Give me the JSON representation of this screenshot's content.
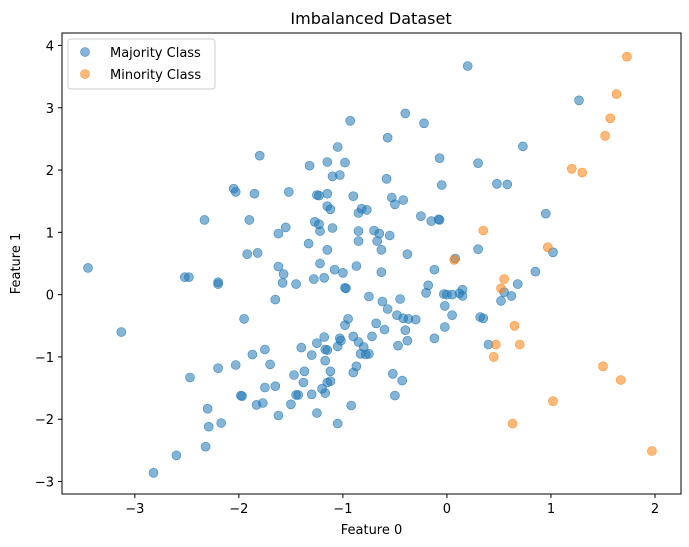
{
  "chart_data": {
    "type": "scatter",
    "title": "Imbalanced Dataset",
    "xlabel": "Feature 0",
    "ylabel": "Feature 1",
    "xlim": [
      -3.7,
      2.25
    ],
    "ylim": [
      -3.2,
      4.2
    ],
    "xticks": [
      -3,
      -2,
      -1,
      0,
      1,
      2
    ],
    "yticks": [
      -3,
      -2,
      -1,
      0,
      1,
      2,
      3,
      4
    ],
    "grid": false,
    "legend_position": "top-left",
    "series": [
      {
        "name": "Majority Class",
        "color": "#1f77b4",
        "points": [
          [
            -3.45,
            0.43
          ],
          [
            -3.13,
            -0.6
          ],
          [
            -2.82,
            -2.86
          ],
          [
            -2.6,
            -2.58
          ],
          [
            -2.52,
            0.28
          ],
          [
            -2.48,
            0.28
          ],
          [
            -2.47,
            -1.33
          ],
          [
            -2.33,
            1.2
          ],
          [
            -2.32,
            -2.44
          ],
          [
            -2.3,
            -1.83
          ],
          [
            -2.29,
            -2.12
          ],
          [
            -2.2,
            0.17
          ],
          [
            -2.2,
            0.2
          ],
          [
            -2.2,
            -1.18
          ],
          [
            -2.17,
            -2.06
          ],
          [
            -2.05,
            1.7
          ],
          [
            -2.03,
            1.65
          ],
          [
            -2.03,
            -1.13
          ],
          [
            -1.98,
            -1.62
          ],
          [
            -1.97,
            -1.63
          ],
          [
            -1.95,
            -0.39
          ],
          [
            -1.92,
            0.65
          ],
          [
            -1.9,
            1.2
          ],
          [
            -1.87,
            -0.96
          ],
          [
            -1.85,
            1.62
          ],
          [
            -1.83,
            -1.77
          ],
          [
            -1.82,
            0.67
          ],
          [
            -1.8,
            2.23
          ],
          [
            -1.77,
            -1.74
          ],
          [
            -1.75,
            -0.88
          ],
          [
            -1.75,
            -1.49
          ],
          [
            -1.7,
            -1.12
          ],
          [
            -1.65,
            -0.08
          ],
          [
            -1.65,
            -1.47
          ],
          [
            -1.62,
            0.98
          ],
          [
            -1.62,
            0.45
          ],
          [
            -1.62,
            -1.94
          ],
          [
            -1.58,
            0.19
          ],
          [
            -1.57,
            0.33
          ],
          [
            -1.55,
            1.08
          ],
          [
            -1.52,
            1.65
          ],
          [
            -1.5,
            -1.76
          ],
          [
            -1.47,
            -1.29
          ],
          [
            -1.45,
            0.17
          ],
          [
            -1.45,
            -1.61
          ],
          [
            -1.43,
            -1.61
          ],
          [
            -1.4,
            -0.85
          ],
          [
            -1.38,
            -1.41
          ],
          [
            -1.37,
            -1.23
          ],
          [
            -1.33,
            0.82
          ],
          [
            -1.32,
            2.07
          ],
          [
            -1.3,
            -0.97
          ],
          [
            -1.3,
            -1.6
          ],
          [
            -1.28,
            0.25
          ],
          [
            -1.27,
            1.17
          ],
          [
            -1.25,
            1.6
          ],
          [
            -1.25,
            -0.78
          ],
          [
            -1.25,
            -1.9
          ],
          [
            -1.23,
            1.59
          ],
          [
            -1.23,
            1.13
          ],
          [
            -1.22,
            1.02
          ],
          [
            -1.22,
            0.5
          ],
          [
            -1.2,
            -1.51
          ],
          [
            -1.18,
            0.27
          ],
          [
            -1.18,
            -0.68
          ],
          [
            -1.17,
            -0.88
          ],
          [
            -1.17,
            -1.06
          ],
          [
            -1.17,
            -1.58
          ],
          [
            -1.15,
            2.13
          ],
          [
            -1.15,
            1.62
          ],
          [
            -1.15,
            1.42
          ],
          [
            -1.15,
            0.72
          ],
          [
            -1.15,
            -1.41
          ],
          [
            -1.15,
            -0.89
          ],
          [
            -1.12,
            -1.39
          ],
          [
            -1.12,
            -1.23
          ],
          [
            -1.12,
            1.37
          ],
          [
            -1.1,
            1.9
          ],
          [
            -1.1,
            1.07
          ],
          [
            -1.08,
            0.4
          ],
          [
            -1.05,
            -0.83
          ],
          [
            -1.05,
            -2.07
          ],
          [
            -1.05,
            2.37
          ],
          [
            -1.03,
            -0.7
          ],
          [
            -1.03,
            1.92
          ],
          [
            -1.02,
            -0.74
          ],
          [
            -1.0,
            0.35
          ],
          [
            -0.98,
            -0.49
          ],
          [
            -0.98,
            0.11
          ],
          [
            -0.98,
            2.12
          ],
          [
            -0.97,
            0.1
          ],
          [
            -0.95,
            -0.39
          ],
          [
            -0.93,
            2.79
          ],
          [
            -0.92,
            -1.78
          ],
          [
            -0.9,
            -0.67
          ],
          [
            -0.9,
            -1.25
          ],
          [
            -0.9,
            1.58
          ],
          [
            -0.87,
            -1.15
          ],
          [
            -0.87,
            0.46
          ],
          [
            -0.85,
            1.02
          ],
          [
            -0.85,
            0.86
          ],
          [
            -0.85,
            1.31
          ],
          [
            -0.85,
            -0.76
          ],
          [
            -0.83,
            -0.95
          ],
          [
            -0.82,
            1.38
          ],
          [
            -0.8,
            -0.84
          ],
          [
            -0.78,
            -0.96
          ],
          [
            -0.77,
            1.36
          ],
          [
            -0.75,
            -0.95
          ],
          [
            -0.75,
            -0.03
          ],
          [
            -0.72,
            -0.67
          ],
          [
            -0.7,
            1.03
          ],
          [
            -0.68,
            -0.46
          ],
          [
            -0.67,
            0.86
          ],
          [
            -0.65,
            0.98
          ],
          [
            -0.63,
            0.36
          ],
          [
            -0.63,
            0.72
          ],
          [
            -0.62,
            -0.11
          ],
          [
            -0.6,
            -0.56
          ],
          [
            -0.58,
            1.86
          ],
          [
            -0.57,
            2.52
          ],
          [
            -0.57,
            -0.23
          ],
          [
            -0.55,
            0.95
          ],
          [
            -0.53,
            1.56
          ],
          [
            -0.52,
            -1.27
          ],
          [
            -0.5,
            -1.62
          ],
          [
            -0.5,
            1.45
          ],
          [
            -0.48,
            -0.33
          ],
          [
            -0.47,
            -0.82
          ],
          [
            -0.45,
            -0.07
          ],
          [
            -0.43,
            -1.38
          ],
          [
            -0.42,
            1.52
          ],
          [
            -0.42,
            -0.38
          ],
          [
            -0.4,
            -0.57
          ],
          [
            -0.4,
            2.91
          ],
          [
            -0.38,
            -0.74
          ],
          [
            -0.38,
            0.65
          ],
          [
            -0.37,
            -0.39
          ],
          [
            -0.3,
            -0.4
          ],
          [
            -0.25,
            1.26
          ],
          [
            -0.22,
            2.75
          ],
          [
            -0.2,
            0.03
          ],
          [
            -0.18,
            0.15
          ],
          [
            -0.15,
            1.18
          ],
          [
            -0.12,
            -0.7
          ],
          [
            -0.12,
            0.4
          ],
          [
            -0.08,
            1.21
          ],
          [
            -0.07,
            1.2
          ],
          [
            -0.07,
            2.19
          ],
          [
            -0.05,
            1.76
          ],
          [
            -0.03,
            0.01
          ],
          [
            -0.02,
            -0.52
          ],
          [
            -0.02,
            -0.18
          ],
          [
            0.0,
            0.0
          ],
          [
            0.05,
            -0.33
          ],
          [
            0.05,
            0.0
          ],
          [
            0.08,
            0.58
          ],
          [
            0.12,
            0.02
          ],
          [
            0.15,
            0.08
          ],
          [
            0.15,
            -0.02
          ],
          [
            0.2,
            3.67
          ],
          [
            0.3,
            2.11
          ],
          [
            0.3,
            0.73
          ],
          [
            0.32,
            -0.36
          ],
          [
            0.35,
            -0.38
          ],
          [
            0.4,
            -0.8
          ],
          [
            0.48,
            1.78
          ],
          [
            0.52,
            -0.1
          ],
          [
            0.55,
            0.04
          ],
          [
            0.58,
            1.77
          ],
          [
            0.62,
            -0.02
          ],
          [
            0.68,
            0.17
          ],
          [
            0.73,
            2.38
          ],
          [
            0.85,
            0.37
          ],
          [
            0.95,
            1.3
          ],
          [
            1.02,
            0.68
          ],
          [
            1.27,
            3.12
          ]
        ]
      },
      {
        "name": "Minority Class",
        "color": "#ff7f0e",
        "points": [
          [
            0.07,
            0.56
          ],
          [
            0.35,
            1.03
          ],
          [
            0.45,
            -1.0
          ],
          [
            0.47,
            -0.8
          ],
          [
            0.52,
            0.1
          ],
          [
            0.55,
            0.25
          ],
          [
            0.63,
            -2.07
          ],
          [
            0.65,
            -0.5
          ],
          [
            0.7,
            -0.8
          ],
          [
            0.97,
            0.76
          ],
          [
            1.02,
            -1.71
          ],
          [
            1.2,
            2.02
          ],
          [
            1.3,
            1.96
          ],
          [
            1.5,
            -1.15
          ],
          [
            1.52,
            2.55
          ],
          [
            1.57,
            2.83
          ],
          [
            1.63,
            3.22
          ],
          [
            1.67,
            -1.37
          ],
          [
            1.73,
            3.82
          ],
          [
            1.97,
            -2.51
          ]
        ]
      }
    ]
  }
}
